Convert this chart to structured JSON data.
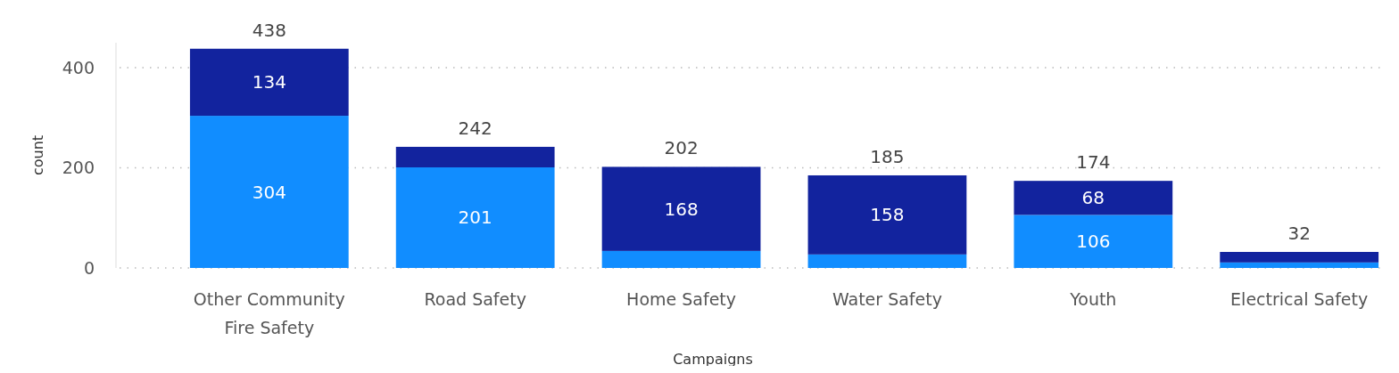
{
  "chart_data": {
    "type": "bar",
    "stacked": true,
    "xlabel": "Campaigns",
    "ylabel": "count",
    "categories": [
      "Other Community Fire Safety",
      "Road Safety",
      "Home Safety",
      "Water Safety",
      "Youth",
      "Electrical Safety"
    ],
    "series": [
      {
        "color": "#118dff",
        "values": [
          304,
          201,
          34,
          27,
          106,
          11
        ],
        "value_labels": [
          "304",
          "201",
          null,
          null,
          "106",
          null
        ]
      },
      {
        "color": "#12239e",
        "values": [
          134,
          41,
          168,
          158,
          68,
          21
        ],
        "value_labels": [
          "134",
          null,
          "168",
          "158",
          "68",
          null
        ]
      }
    ],
    "totals": [
      "438",
      "242",
      "202",
      "185",
      "174",
      "32"
    ],
    "ylim": [
      0,
      450
    ],
    "yticks": [
      0,
      200,
      400
    ],
    "grid": "y"
  }
}
